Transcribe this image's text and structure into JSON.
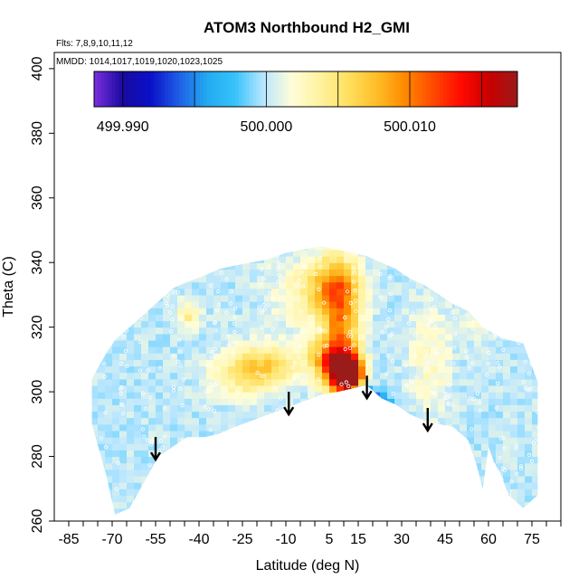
{
  "chart_data": {
    "type": "heatmap",
    "title": "ATOM3 Northbound H2_GMI",
    "annotations": {
      "flights": "Flts: 7,8,9,10,11,12",
      "dates": "MMDD: 1014,1017,1019,1020,1023,1025"
    },
    "xlabel": "Latitude (deg N)",
    "ylabel": "Theta (C)",
    "xlim": [
      -90,
      85
    ],
    "ylim": [
      260,
      405
    ],
    "x_ticks": [
      -85,
      -80,
      -75,
      -70,
      -65,
      -60,
      -55,
      -50,
      -45,
      -40,
      -35,
      -30,
      -25,
      -20,
      -15,
      -10,
      -5,
      0,
      5,
      10,
      15,
      20,
      25,
      30,
      35,
      40,
      45,
      50,
      55,
      60,
      65,
      70,
      75,
      80,
      85
    ],
    "x_tick_labels": [
      "-85",
      "-70",
      "-55",
      "-40",
      "-25",
      "-10",
      "5",
      "15",
      "30",
      "45",
      "60",
      "75"
    ],
    "y_ticks": [
      260,
      280,
      300,
      320,
      340,
      360,
      380,
      400
    ],
    "y_tick_labels": [
      "260",
      "280",
      "300",
      "320",
      "340",
      "360",
      "380",
      "400"
    ],
    "colorbar": {
      "range": [
        499.988,
        500.0175
      ],
      "colors": [
        "#7b2fe0",
        "#1a0aa0",
        "#0a10c8",
        "#1f5ee6",
        "#22aaf0",
        "#37c3fb",
        "#b9e6ff",
        "#fffdd8",
        "#fff3a0",
        "#ffe060",
        "#ffbe28",
        "#ff8a00",
        "#ff4a00",
        "#ff0a00",
        "#c80000",
        "#9b1a1a"
      ],
      "ticks": [
        499.99,
        499.995,
        500.0,
        500.005,
        500.01,
        500.015
      ],
      "tick_labels": [
        "499.990",
        "500.000",
        "500.010"
      ]
    },
    "coverage_boundary": {
      "lat": [
        -77,
        -72,
        -69,
        -64,
        -59,
        -54,
        -49,
        -44,
        -38,
        -33,
        -28,
        -22,
        -16,
        -10,
        -4,
        2,
        8,
        13,
        18,
        23,
        28,
        33,
        38,
        43,
        48,
        53,
        56,
        58,
        60,
        62,
        64,
        67,
        72,
        77
      ],
      "bottom": [
        290,
        274,
        262,
        264,
        272,
        280,
        283,
        286,
        286,
        287,
        289,
        291,
        293,
        295,
        297,
        299,
        300,
        301,
        302,
        298,
        296,
        293,
        291,
        290,
        289,
        285,
        277,
        270,
        283,
        278,
        275,
        268,
        264,
        268
      ],
      "top": [
        304,
        312,
        316,
        320,
        324,
        328,
        332,
        334,
        336,
        338,
        339,
        340,
        341,
        343,
        344,
        345,
        344,
        343,
        342,
        340,
        338,
        335,
        333,
        330,
        327,
        325,
        322,
        320,
        319,
        318,
        317,
        316,
        315,
        303
      ]
    },
    "base_value": 500.0,
    "anomalies": [
      {
        "lat": 12,
        "theta": 305,
        "value": 500.0165,
        "spread_lat": 3.0,
        "spread_theta": 3.5
      },
      {
        "lat": 9,
        "theta": 307,
        "value": 500.013,
        "spread_lat": 4.5,
        "spread_theta": 5.0
      },
      {
        "lat": 9,
        "theta": 321,
        "value": 500.0085,
        "spread_lat": 4.5,
        "spread_theta": 12.0
      },
      {
        "lat": 6,
        "theta": 333,
        "value": 500.006,
        "spread_lat": 6.0,
        "spread_theta": 6.0
      },
      {
        "lat": -24,
        "theta": 306,
        "value": 500.0055,
        "spread_lat": 8.0,
        "spread_theta": 5.0
      },
      {
        "lat": -14,
        "theta": 309,
        "value": 500.0045,
        "spread_lat": 6.0,
        "spread_theta": 4.0
      },
      {
        "lat": 2,
        "theta": 311,
        "value": 500.0045,
        "spread_lat": 5.0,
        "spread_theta": 4.0
      },
      {
        "lat": -44,
        "theta": 324,
        "value": 500.004,
        "spread_lat": 3.0,
        "spread_theta": 3.0
      },
      {
        "lat": 17,
        "theta": 298,
        "value": 499.9915,
        "spread_lat": 2.5,
        "spread_theta": 3.0
      },
      {
        "lat": 22,
        "theta": 296,
        "value": 499.9935,
        "spread_lat": 3.0,
        "spread_theta": 2.5
      },
      {
        "lat": 40,
        "theta": 310,
        "value": 500.0025,
        "spread_lat": 5.0,
        "spread_theta": 12.0
      },
      {
        "lat": 58,
        "theta": 328,
        "value": 500.0025,
        "spread_lat": 4.0,
        "spread_theta": 8.0
      },
      {
        "lat": -3,
        "theta": 330,
        "value": 500.0025,
        "spread_lat": 9.0,
        "spread_theta": 8.0
      }
    ],
    "arrows": [
      {
        "lat": -55,
        "theta_start": 286,
        "theta_end": 279
      },
      {
        "lat": -9,
        "theta_start": 300,
        "theta_end": 293
      },
      {
        "lat": 18,
        "theta_start": 305,
        "theta_end": 298
      },
      {
        "lat": 39,
        "theta_start": 295,
        "theta_end": 288
      }
    ]
  }
}
